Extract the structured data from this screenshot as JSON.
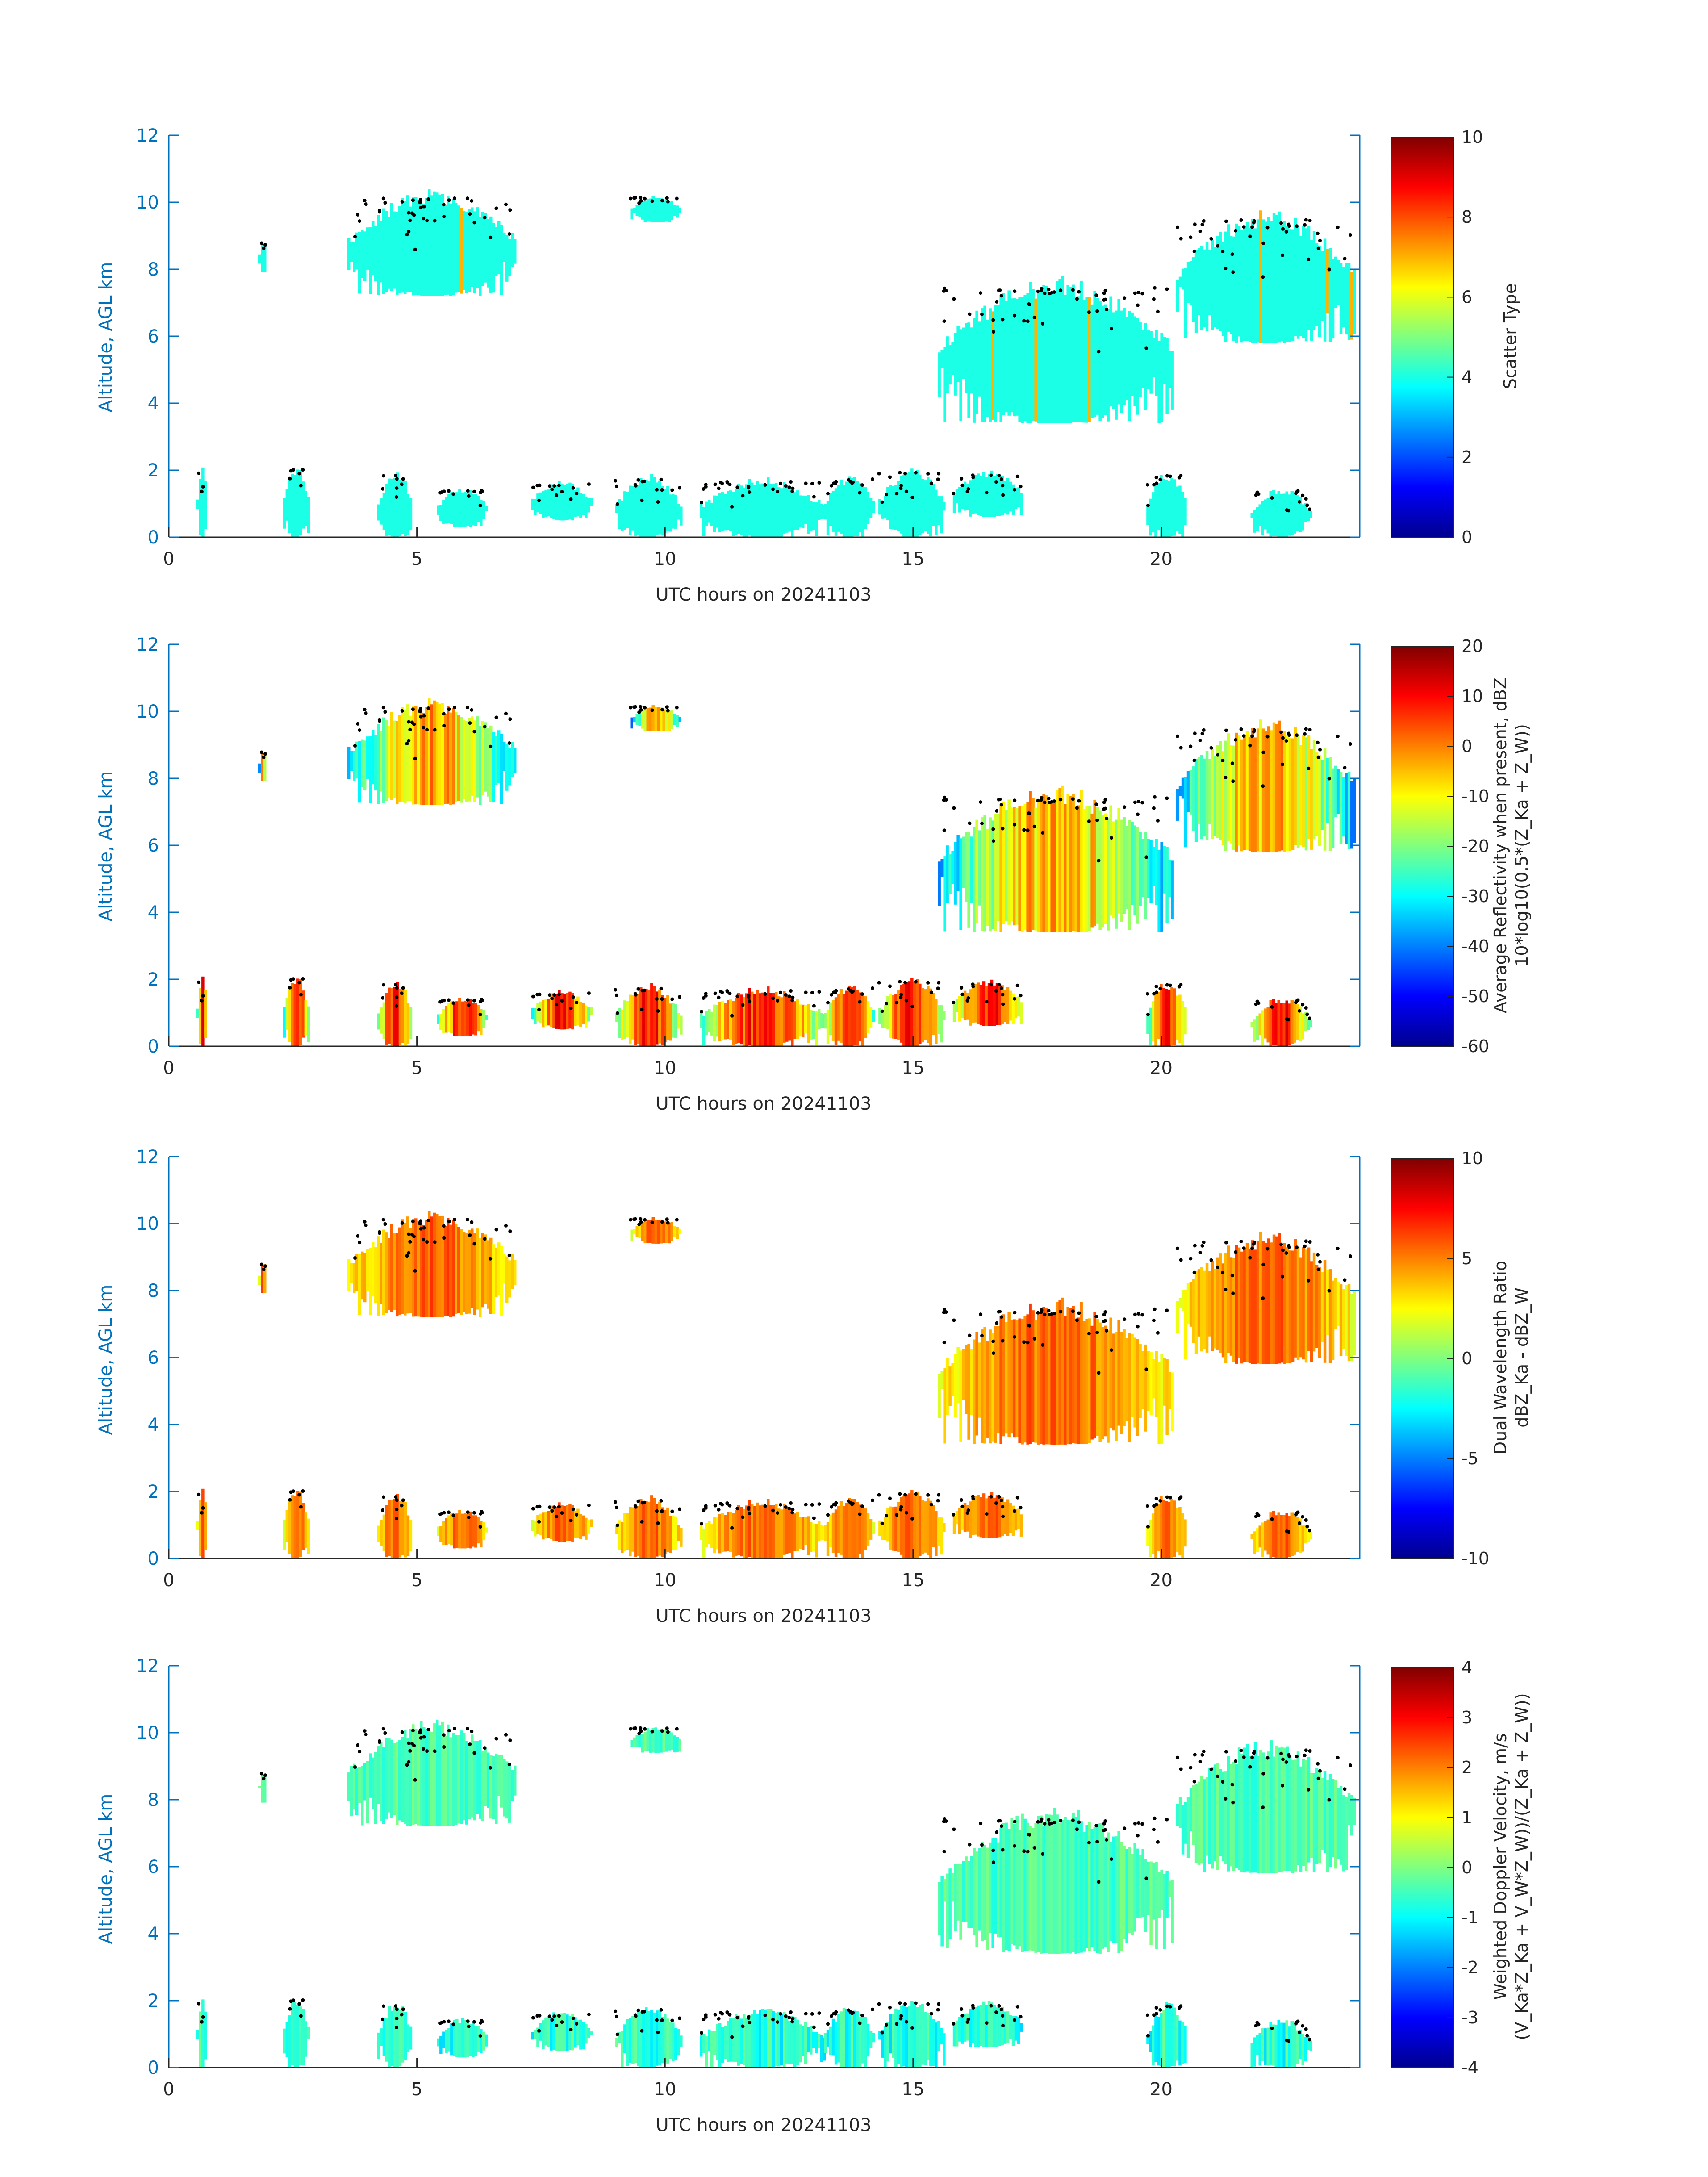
{
  "figure": {
    "colors": {
      "axis": "#0072bd",
      "text": "#262626",
      "background": "#ffffff",
      "dots": "#000000"
    },
    "colormap": "jet"
  },
  "chart_data": [
    {
      "type": "heatmap",
      "xlabel": "UTC hours on 20241103",
      "ylabel": "Altitude, AGL km",
      "xlim": [
        0,
        24
      ],
      "ylim": [
        0,
        12
      ],
      "xticks": [
        0,
        5,
        10,
        15,
        20
      ],
      "yticks": [
        0,
        2,
        4,
        6,
        8,
        10,
        12
      ],
      "colorbar": {
        "label": [
          "Scatter Type"
        ],
        "clim": [
          0,
          10
        ],
        "ticks": [
          0,
          2,
          4,
          6,
          8,
          10
        ]
      },
      "field": "scatter_type"
    },
    {
      "type": "heatmap",
      "xlabel": "UTC hours on 20241103",
      "ylabel": "Altitude, AGL km",
      "xlim": [
        0,
        24
      ],
      "ylim": [
        0,
        12
      ],
      "xticks": [
        0,
        5,
        10,
        15,
        20
      ],
      "yticks": [
        0,
        2,
        4,
        6,
        8,
        10,
        12
      ],
      "colorbar": {
        "label": [
          "Average Reflectivity when present, dBZ",
          "10*log10(0.5*(Z_Ka + Z_W))"
        ],
        "clim": [
          -60,
          20
        ],
        "ticks": [
          -60,
          -50,
          -40,
          -30,
          -20,
          -10,
          0,
          10,
          20
        ]
      },
      "field": "reflectivity"
    },
    {
      "type": "heatmap",
      "xlabel": "UTC hours on 20241103",
      "ylabel": "Altitude, AGL km",
      "xlim": [
        0,
        24
      ],
      "ylim": [
        0,
        12
      ],
      "xticks": [
        0,
        5,
        10,
        15,
        20
      ],
      "yticks": [
        0,
        2,
        4,
        6,
        8,
        10,
        12
      ],
      "colorbar": {
        "label": [
          "Dual Wavelength Ratio",
          "dBZ_Ka - dBZ_W"
        ],
        "clim": [
          -10,
          10
        ],
        "ticks": [
          -10,
          -5,
          0,
          5,
          10
        ]
      },
      "field": "dwr"
    },
    {
      "type": "heatmap",
      "xlabel": "UTC hours on 20241103",
      "ylabel": "Altitude, AGL km",
      "xlim": [
        0,
        24
      ],
      "ylim": [
        0,
        12
      ],
      "xticks": [
        0,
        5,
        10,
        15,
        20
      ],
      "yticks": [
        0,
        2,
        4,
        6,
        8,
        10,
        12
      ],
      "colorbar": {
        "label": [
          "Weighted Doppler Velocity, m/s",
          "(V_Ka*Z_Ka + V_W*Z_W))/(Z_Ka + Z_W))"
        ],
        "clim": [
          -4,
          4
        ],
        "ticks": [
          -4,
          -3,
          -2,
          -1,
          0,
          1,
          2,
          3,
          4
        ]
      },
      "field": "velocity"
    }
  ],
  "echo_regions": [
    {
      "x0": 0.55,
      "x1": 0.75,
      "y0": 0.0,
      "y1": 2.1
    },
    {
      "x0": 1.8,
      "x1": 1.95,
      "y0": 7.9,
      "y1": 8.9
    },
    {
      "x0": 2.3,
      "x1": 2.8,
      "y0": 0.0,
      "y1": 2.2
    },
    {
      "x0": 3.6,
      "x1": 7.0,
      "y0": 7.2,
      "y1": 10.4
    },
    {
      "x0": 4.2,
      "x1": 4.9,
      "y0": 0.0,
      "y1": 2.0
    },
    {
      "x0": 5.4,
      "x1": 6.4,
      "y0": 0.3,
      "y1": 1.5
    },
    {
      "x0": 7.3,
      "x1": 8.5,
      "y0": 0.5,
      "y1": 1.7
    },
    {
      "x0": 9.0,
      "x1": 10.3,
      "y0": 0.0,
      "y1": 1.9
    },
    {
      "x0": 9.3,
      "x1": 10.3,
      "y0": 9.4,
      "y1": 10.2
    },
    {
      "x0": 10.7,
      "x1": 13.2,
      "y0": 0.0,
      "y1": 1.8
    },
    {
      "x0": 13.2,
      "x1": 14.2,
      "y0": 0.0,
      "y1": 1.9
    },
    {
      "x0": 14.3,
      "x1": 15.6,
      "y0": 0.0,
      "y1": 2.1
    },
    {
      "x0": 15.5,
      "x1": 20.2,
      "y0": 3.4,
      "y1": 7.8
    },
    {
      "x0": 15.8,
      "x1": 17.2,
      "y0": 0.6,
      "y1": 2.0
    },
    {
      "x0": 19.7,
      "x1": 20.5,
      "y0": 0.0,
      "y1": 2.0
    },
    {
      "x0": 20.3,
      "x1": 23.9,
      "y0": 5.8,
      "y1": 9.8
    },
    {
      "x0": 21.8,
      "x1": 23.0,
      "y0": 0.0,
      "y1": 1.5
    }
  ]
}
